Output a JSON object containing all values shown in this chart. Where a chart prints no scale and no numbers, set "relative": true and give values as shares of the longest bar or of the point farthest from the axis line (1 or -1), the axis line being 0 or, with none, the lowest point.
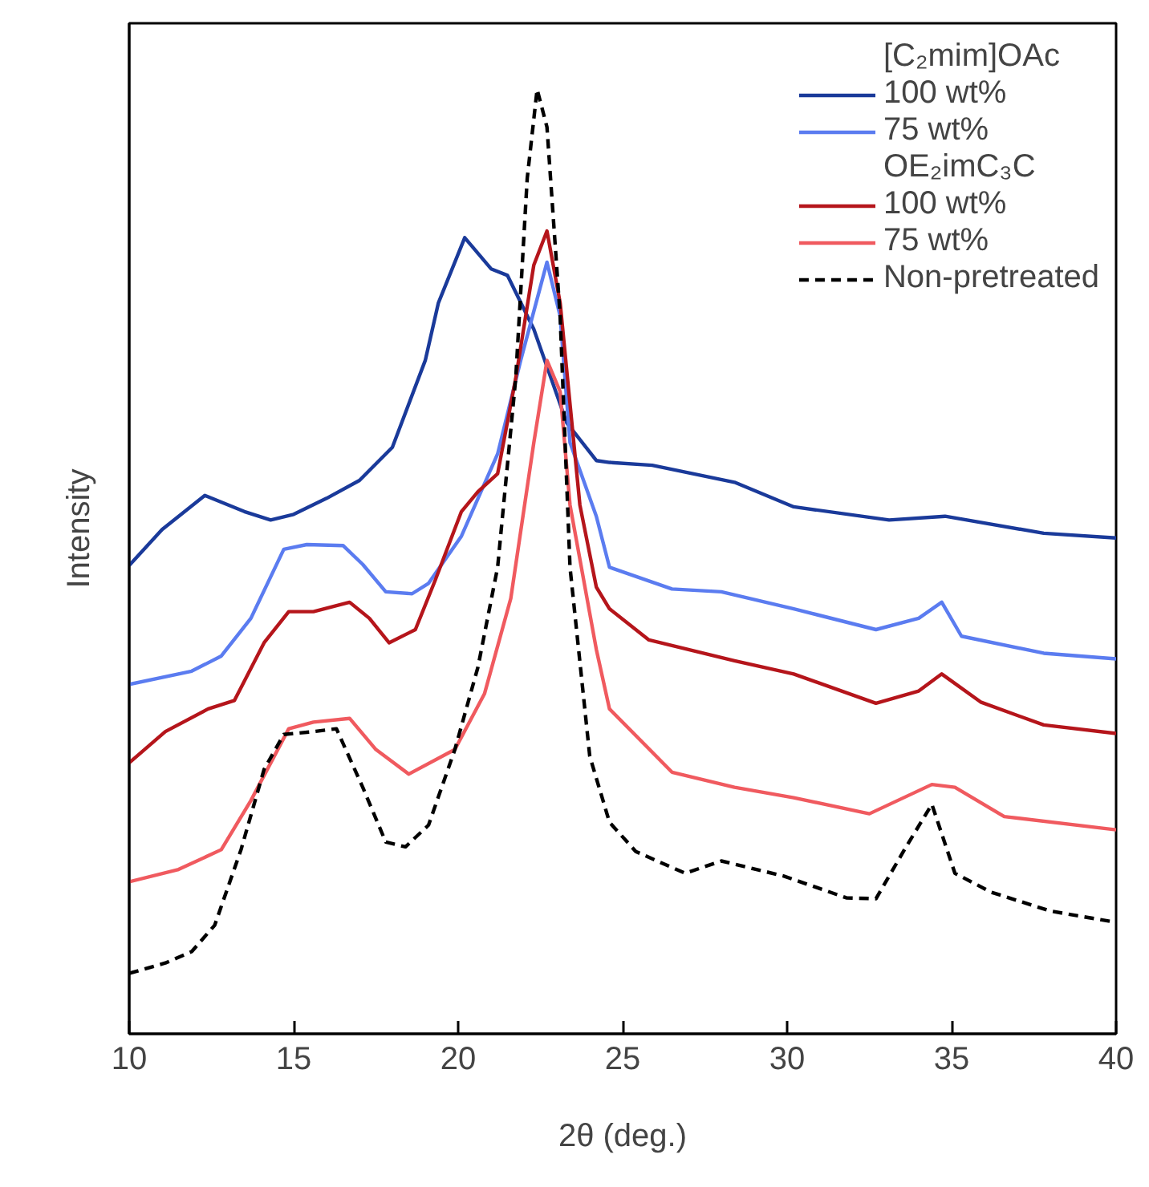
{
  "chart_data": {
    "type": "line",
    "relative": true,
    "xlabel": "2θ (deg.)",
    "ylabel": "Intensity",
    "xlim": [
      10,
      40
    ],
    "xticks": [
      10,
      15,
      20,
      25,
      30,
      35,
      40
    ],
    "grid": false,
    "legend": "top right",
    "annotations": [
      "[C₂mim]OAc",
      "OE₂imC₃C"
    ],
    "series": [
      {
        "name": "100 wt%",
        "color": "#1a3a9a",
        "line_style": "solid",
        "x": [
          10,
          11,
          12.3,
          13.5,
          14.3,
          15,
          16,
          17,
          18,
          19,
          19.4,
          20.2,
          21,
          21.5,
          22.3,
          23.3,
          24.2,
          24.6,
          25.9,
          28.4,
          30.2,
          33.1,
          34.8,
          37.8,
          40
        ],
        "values": [
          0.496,
          0.534,
          0.57,
          0.553,
          0.544,
          0.55,
          0.567,
          0.586,
          0.621,
          0.713,
          0.774,
          0.843,
          0.81,
          0.803,
          0.746,
          0.647,
          0.607,
          0.605,
          0.602,
          0.584,
          0.558,
          0.544,
          0.548,
          0.53,
          0.525
        ]
      },
      {
        "name": "75 wt%",
        "color": "#5b7cf0",
        "line_style": "solid",
        "x": [
          10,
          11.9,
          12.8,
          13.7,
          14.7,
          15.4,
          16.5,
          17.1,
          17.8,
          18.6,
          19.1,
          20.1,
          21.2,
          21.9,
          22.7,
          23.1,
          23.4,
          24.2,
          24.6,
          26.5,
          28,
          30.2,
          32.7,
          34,
          34.7,
          35.3,
          37.8,
          40
        ],
        "values": [
          0.37,
          0.384,
          0.4,
          0.44,
          0.513,
          0.518,
          0.517,
          0.497,
          0.468,
          0.466,
          0.477,
          0.527,
          0.614,
          0.713,
          0.817,
          0.76,
          0.626,
          0.548,
          0.494,
          0.471,
          0.468,
          0.45,
          0.428,
          0.44,
          0.457,
          0.421,
          0.403,
          0.397
        ]
      },
      {
        "name": "100 wt%",
        "color": "#b5151b",
        "line_style": "solid",
        "x": [
          10,
          11.1,
          12.4,
          13.2,
          14.1,
          14.85,
          15.6,
          16.7,
          17.3,
          17.9,
          18.7,
          19.3,
          20.1,
          20.6,
          21.2,
          21.75,
          22.3,
          22.7,
          23.1,
          23.7,
          24.2,
          24.6,
          25.8,
          28.4,
          30.2,
          32.7,
          34,
          34.7,
          35.9,
          37.8,
          40
        ],
        "values": [
          0.287,
          0.32,
          0.344,
          0.353,
          0.414,
          0.447,
          0.447,
          0.457,
          0.44,
          0.414,
          0.428,
          0.48,
          0.553,
          0.574,
          0.593,
          0.694,
          0.814,
          0.85,
          0.774,
          0.56,
          0.473,
          0.45,
          0.417,
          0.395,
          0.381,
          0.35,
          0.363,
          0.381,
          0.351,
          0.327,
          0.318
        ]
      },
      {
        "name": "75 wt%",
        "color": "#f05a5f",
        "line_style": "solid",
        "x": [
          10,
          11.5,
          12.8,
          13.7,
          14.85,
          15.6,
          16.7,
          17.5,
          18.5,
          19.9,
          20.8,
          21.6,
          22.3,
          22.7,
          23.1,
          23.4,
          24.2,
          24.6,
          26.5,
          28.4,
          30.2,
          32.5,
          34.4,
          35.1,
          36.6,
          40
        ],
        "values": [
          0.161,
          0.174,
          0.195,
          0.247,
          0.323,
          0.33,
          0.334,
          0.301,
          0.275,
          0.301,
          0.36,
          0.461,
          0.626,
          0.713,
          0.68,
          0.56,
          0.407,
          0.344,
          0.277,
          0.261,
          0.25,
          0.233,
          0.264,
          0.261,
          0.23,
          0.216
        ]
      },
      {
        "name": "Non-pretreated",
        "color": "#000000",
        "line_style": "dashed",
        "x": [
          10,
          11.1,
          11.9,
          12.6,
          13.4,
          14.1,
          14.7,
          15.6,
          16.3,
          17.1,
          17.8,
          18.4,
          19.1,
          19.9,
          20.6,
          21.2,
          21.75,
          22.1,
          22.4,
          22.7,
          23.1,
          23.4,
          24,
          24.6,
          25.4,
          26.9,
          28,
          29.9,
          31.8,
          32.7,
          33.6,
          34.4,
          35.1,
          36.2,
          38,
          40
        ],
        "values": [
          0.064,
          0.075,
          0.087,
          0.115,
          0.195,
          0.28,
          0.317,
          0.32,
          0.323,
          0.261,
          0.203,
          0.198,
          0.221,
          0.301,
          0.388,
          0.494,
          0.694,
          0.906,
          1.0,
          0.96,
          0.76,
          0.494,
          0.294,
          0.224,
          0.193,
          0.17,
          0.183,
          0.167,
          0.144,
          0.143,
          0.197,
          0.243,
          0.17,
          0.15,
          0.13,
          0.118
        ]
      }
    ]
  }
}
